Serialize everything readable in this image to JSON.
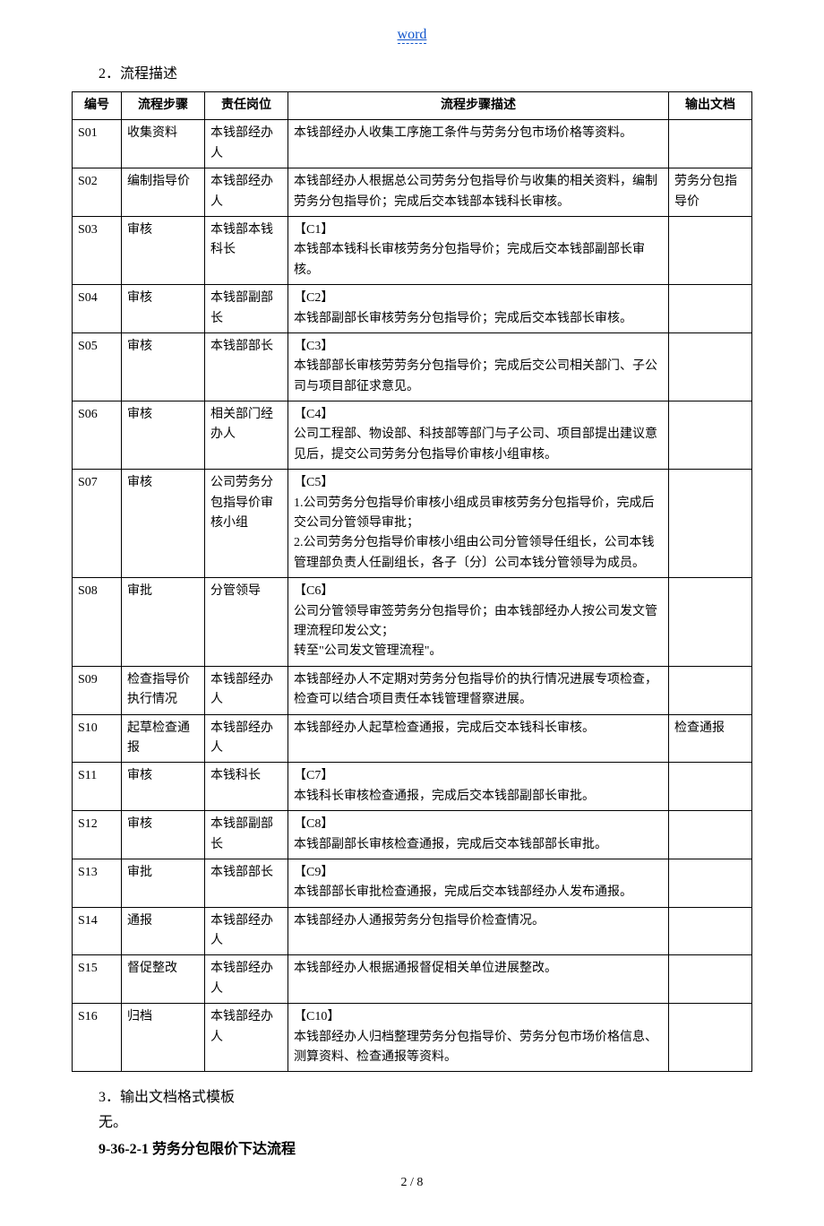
{
  "header": {
    "link_text": "word"
  },
  "section": {
    "title": "2．流程描述"
  },
  "table": {
    "headers": {
      "id": "编号",
      "step": "流程步骤",
      "role": "责任岗位",
      "desc": "流程步骤描述",
      "output": "输出文档"
    },
    "rows": [
      {
        "id": "S01",
        "step": "收集资料",
        "role": "本钱部经办人",
        "desc": "本钱部经办人收集工序施工条件与劳务分包市场价格等资料。",
        "output": ""
      },
      {
        "id": "S02",
        "step": "编制指导价",
        "role": "本钱部经办人",
        "desc": "本钱部经办人根据总公司劳务分包指导价与收集的相关资料，编制劳务分包指导价；完成后交本钱部本钱科长审核。",
        "output": "劳务分包指导价"
      },
      {
        "id": "S03",
        "step": "审核",
        "role": "本钱部本钱科长",
        "desc": "【C1】\n本钱部本钱科长审核劳务分包指导价；完成后交本钱部副部长审核。",
        "output": ""
      },
      {
        "id": "S04",
        "step": "审核",
        "role": "本钱部副部长",
        "desc": "【C2】\n本钱部副部长审核劳务分包指导价；完成后交本钱部长审核。",
        "output": ""
      },
      {
        "id": "S05",
        "step": "审核",
        "role": "本钱部部长",
        "desc": "【C3】\n本钱部部长审核劳劳务分包指导价；完成后交公司相关部门、子公司与项目部征求意见。",
        "output": ""
      },
      {
        "id": "S06",
        "step": "审核",
        "role": "相关部门经办人",
        "desc": "【C4】\n公司工程部、物设部、科技部等部门与子公司、项目部提出建议意见后，提交公司劳务分包指导价审核小组审核。",
        "output": ""
      },
      {
        "id": "S07",
        "step": "审核",
        "role": "公司劳务分包指导价审核小组",
        "desc": "【C5】\n1.公司劳务分包指导价审核小组成员审核劳务分包指导价，完成后交公司分管领导审批；\n2.公司劳务分包指导价审核小组由公司分管领导任组长，公司本钱管理部负责人任副组长，各子〔分〕公司本钱分管领导为成员。",
        "output": ""
      },
      {
        "id": "S08",
        "step": "审批",
        "role": "分管领导",
        "desc": "【C6】\n公司分管领导审签劳务分包指导价；由本钱部经办人按公司发文管理流程印发公文；\n转至\"公司发文管理流程\"。",
        "output": ""
      },
      {
        "id": "S09",
        "step": "检查指导价执行情况",
        "role": "本钱部经办人",
        "desc": "本钱部经办人不定期对劳务分包指导价的执行情况进展专项检查，检查可以结合项目责任本钱管理督察进展。",
        "output": ""
      },
      {
        "id": "S10",
        "step": "起草检查通报",
        "role": "本钱部经办人",
        "desc": "本钱部经办人起草检查通报，完成后交本钱科长审核。",
        "output": "检查通报"
      },
      {
        "id": "S11",
        "step": "审核",
        "role": "本钱科长",
        "desc": "【C7】\n本钱科长审核检查通报，完成后交本钱部副部长审批。",
        "output": ""
      },
      {
        "id": "S12",
        "step": "审核",
        "role": "本钱部副部长",
        "desc": "【C8】\n本钱部副部长审核检查通报，完成后交本钱部部长审批。",
        "output": ""
      },
      {
        "id": "S13",
        "step": "审批",
        "role": "本钱部部长",
        "desc": "【C9】\n本钱部部长审批检查通报，完成后交本钱部经办人发布通报。",
        "output": ""
      },
      {
        "id": "S14",
        "step": "通报",
        "role": "本钱部经办人",
        "desc": "本钱部经办人通报劳务分包指导价检查情况。",
        "output": ""
      },
      {
        "id": "S15",
        "step": "督促整改",
        "role": "本钱部经办人",
        "desc": "本钱部经办人根据通报督促相关单位进展整改。",
        "output": ""
      },
      {
        "id": "S16",
        "step": "归档",
        "role": "本钱部经办人",
        "desc": "【C10】\n本钱部经办人归档整理劳务分包指导价、劳务分包市场价格信息、测算资料、检查通报等资料。",
        "output": ""
      }
    ]
  },
  "footer": {
    "output_template": "3．输出文档格式模板",
    "none": "无。",
    "next_heading": "9-36-2-1 劳务分包限价下达流程",
    "page_num": "2 / 8"
  }
}
